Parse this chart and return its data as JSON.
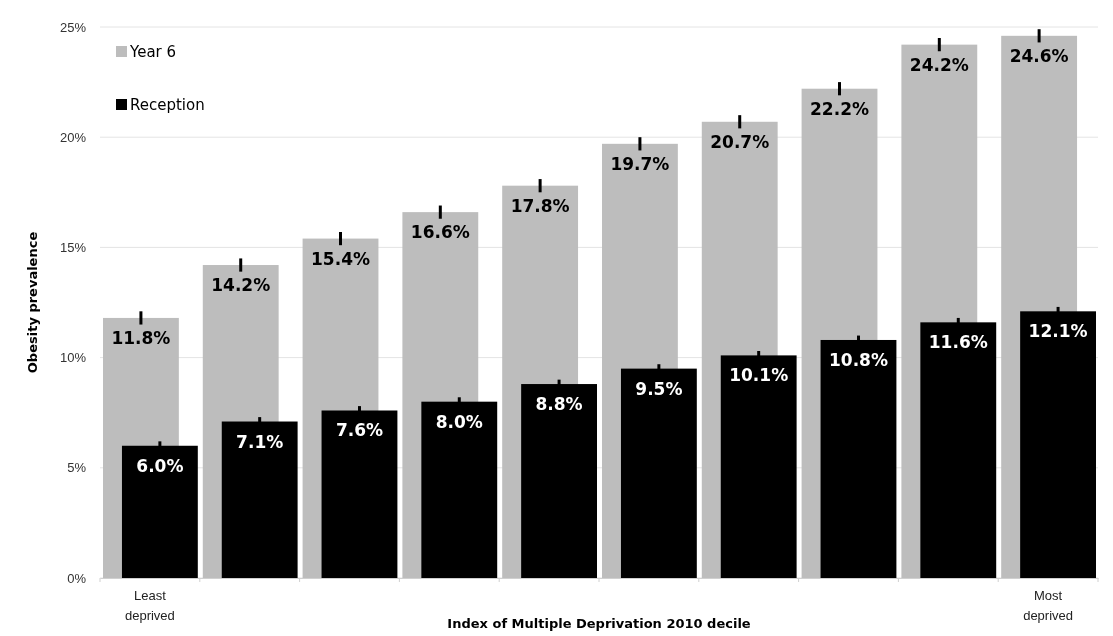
{
  "chart_data": {
    "type": "bar",
    "xlabel": "Index of Multiple Deprivation 2010 decile",
    "ylabel": "Obesity prevalence",
    "categories": [
      "Least deprived",
      null,
      null,
      null,
      null,
      null,
      null,
      null,
      null,
      "Most deprived"
    ],
    "series": [
      {
        "name": "Year 6",
        "color": "#bdbdbd",
        "values": [
          11.8,
          14.2,
          15.4,
          16.6,
          17.8,
          19.7,
          20.7,
          22.2,
          24.2,
          24.6
        ],
        "errors": [
          0.3,
          0.3,
          0.3,
          0.3,
          0.3,
          0.3,
          0.3,
          0.3,
          0.3,
          0.3
        ],
        "value_labels": [
          "11.8%",
          "14.2%",
          "15.4%",
          "16.6%",
          "17.8%",
          "19.7%",
          "20.7%",
          "22.2%",
          "24.2%",
          "24.6%"
        ]
      },
      {
        "name": "Reception",
        "color": "#000000",
        "values": [
          6.0,
          7.1,
          7.6,
          8.0,
          8.8,
          9.5,
          10.1,
          10.8,
          11.6,
          12.1
        ],
        "errors": [
          0.2,
          0.2,
          0.2,
          0.2,
          0.2,
          0.2,
          0.2,
          0.2,
          0.2,
          0.2
        ],
        "value_labels": [
          "6.0%",
          "7.1%",
          "7.6%",
          "8.0%",
          "8.8%",
          "9.5%",
          "10.1%",
          "10.8%",
          "11.6%",
          "12.1%"
        ]
      }
    ],
    "ylim": [
      0,
      25
    ],
    "yticks": [
      {
        "value": 0,
        "label": "0%"
      },
      {
        "value": 5,
        "label": "5%"
      },
      {
        "value": 10,
        "label": "10%"
      },
      {
        "value": 15,
        "label": "15%"
      },
      {
        "value": 20,
        "label": "20%"
      },
      {
        "value": 25,
        "label": "25%"
      }
    ],
    "grid": "y",
    "legend": "top left"
  }
}
